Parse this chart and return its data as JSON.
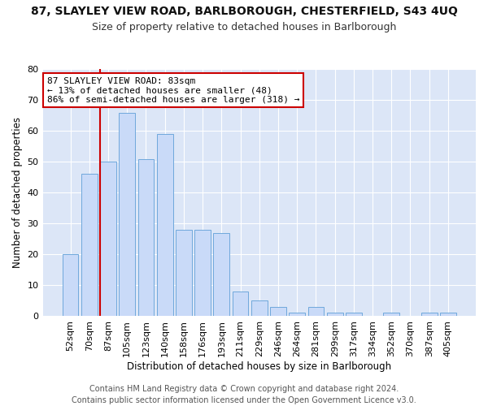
{
  "title1": "87, SLAYLEY VIEW ROAD, BARLBOROUGH, CHESTERFIELD, S43 4UQ",
  "title2": "Size of property relative to detached houses in Barlborough",
  "xlabel": "Distribution of detached houses by size in Barlborough",
  "ylabel": "Number of detached properties",
  "footer1": "Contains HM Land Registry data © Crown copyright and database right 2024.",
  "footer2": "Contains public sector information licensed under the Open Government Licence v3.0.",
  "annotation_line1": "87 SLAYLEY VIEW ROAD: 83sqm",
  "annotation_line2": "← 13% of detached houses are smaller (48)",
  "annotation_line3": "86% of semi-detached houses are larger (318) →",
  "bar_categories": [
    "52sqm",
    "70sqm",
    "87sqm",
    "105sqm",
    "123sqm",
    "140sqm",
    "158sqm",
    "176sqm",
    "193sqm",
    "211sqm",
    "229sqm",
    "246sqm",
    "264sqm",
    "281sqm",
    "299sqm",
    "317sqm",
    "334sqm",
    "352sqm",
    "370sqm",
    "387sqm",
    "405sqm"
  ],
  "bar_values": [
    20,
    46,
    50,
    66,
    51,
    59,
    28,
    28,
    27,
    8,
    5,
    3,
    1,
    3,
    1,
    1,
    0,
    1,
    0,
    1,
    1
  ],
  "bar_color": "#c9daf8",
  "bar_edgecolor": "#6fa8dc",
  "redline_index": 2,
  "ylim": [
    0,
    80
  ],
  "yticks": [
    0,
    10,
    20,
    30,
    40,
    50,
    60,
    70,
    80
  ],
  "background_color": "#ffffff",
  "plot_bg_color": "#dce6f7",
  "grid_color": "#ffffff",
  "annotation_box_edgecolor": "#cc0000",
  "redline_color": "#cc0000",
  "title1_fontsize": 10,
  "title2_fontsize": 9,
  "xlabel_fontsize": 8.5,
  "ylabel_fontsize": 8.5,
  "tick_fontsize": 8,
  "footer_fontsize": 7,
  "annotation_fontsize": 8
}
